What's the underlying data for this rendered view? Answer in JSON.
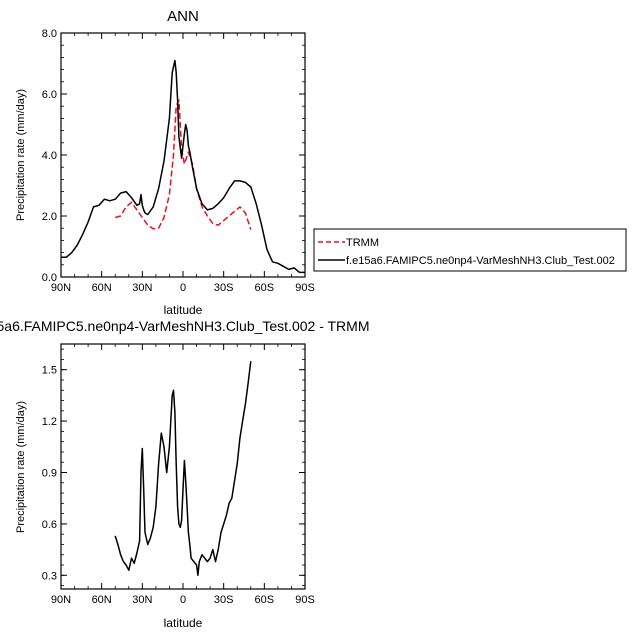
{
  "colors": {
    "trmm": "#e8101a",
    "model": "#000000",
    "axis": "#000000"
  },
  "chart_data": [
    {
      "type": "line",
      "title": "ANN",
      "xlabel": "latitude",
      "ylabel": "Precipitation rate (mm/day)",
      "xlim": [
        90,
        -90
      ],
      "ylim": [
        0,
        8
      ],
      "x_tick_values": [
        90,
        60,
        30,
        0,
        -30,
        -60,
        -90
      ],
      "x_tick_labels": [
        "90N",
        "60N",
        "30N",
        "0",
        "30S",
        "60S",
        "90S"
      ],
      "y_tick_values": [
        0,
        2,
        4,
        6,
        8
      ],
      "y_tick_labels": [
        "0.0",
        "2.0",
        "4.0",
        "6.0",
        "8.0"
      ],
      "grid": false,
      "legend_position": "right",
      "series": [
        {
          "name": "TRMM",
          "style": "dashed",
          "x": [
            50,
            46,
            42,
            38,
            34,
            30,
            26,
            22,
            18,
            14,
            10,
            7,
            5,
            3,
            1,
            -1,
            -4,
            -7,
            -10,
            -14,
            -18,
            -22,
            -26,
            -30,
            -34,
            -38,
            -42,
            -46,
            -50
          ],
          "y": [
            1.95,
            2.0,
            2.3,
            2.45,
            2.2,
            1.95,
            1.7,
            1.58,
            1.6,
            1.95,
            2.7,
            4.0,
            5.6,
            5.8,
            4.2,
            3.7,
            4.1,
            3.7,
            2.9,
            2.3,
            2.0,
            1.75,
            1.7,
            1.85,
            2.0,
            2.15,
            2.3,
            2.1,
            1.55
          ]
        },
        {
          "name": "f.e15a6.FAMIPC5.ne0np4-VarMeshNH3.Club_Test.002",
          "style": "solid",
          "x": [
            90,
            86,
            82,
            78,
            74,
            70,
            66,
            62,
            58,
            54,
            50,
            46,
            42,
            38,
            34,
            32,
            31,
            30,
            29,
            28,
            26,
            22,
            18,
            14,
            10,
            8,
            6,
            5,
            4,
            3,
            1,
            -1,
            -2,
            -3,
            -4,
            -5,
            -7,
            -10,
            -14,
            -18,
            -22,
            -26,
            -30,
            -34,
            -38,
            -42,
            -46,
            -50,
            -54,
            -58,
            -62,
            -66,
            -70,
            -74,
            -78,
            -82,
            -86,
            -90
          ],
          "y": [
            0.65,
            0.65,
            0.8,
            1.05,
            1.4,
            1.8,
            2.3,
            2.35,
            2.55,
            2.5,
            2.55,
            2.75,
            2.8,
            2.6,
            2.35,
            2.4,
            2.7,
            2.35,
            2.2,
            2.1,
            2.05,
            2.3,
            2.9,
            3.8,
            5.2,
            6.7,
            7.1,
            6.7,
            5.8,
            4.6,
            3.9,
            4.7,
            5.0,
            4.8,
            4.3,
            4.1,
            3.6,
            2.9,
            2.4,
            2.2,
            2.25,
            2.4,
            2.6,
            2.9,
            3.15,
            3.15,
            3.1,
            2.95,
            2.4,
            1.7,
            0.9,
            0.5,
            0.45,
            0.35,
            0.25,
            0.3,
            0.15,
            0.15
          ]
        }
      ]
    },
    {
      "type": "line",
      "title": "5a6.FAMIPC5.ne0np4-VarMeshNH3.Club_Test.002 - TRMM",
      "xlabel": "latitude",
      "ylabel": "Precipitation rate (mm/day)",
      "xlim": [
        90,
        -90
      ],
      "ylim": [
        0.22,
        1.65
      ],
      "x_tick_values": [
        90,
        60,
        30,
        0,
        -30,
        -60,
        -90
      ],
      "x_tick_labels": [
        "90N",
        "60N",
        "30N",
        "0",
        "30S",
        "60S",
        "90S"
      ],
      "y_tick_values": [
        0.3,
        0.6,
        0.9,
        1.2,
        1.5
      ],
      "y_tick_labels": [
        "0.3",
        "0.6",
        "0.9",
        "1.2",
        "1.5"
      ],
      "grid": false,
      "series": [
        {
          "style": "solid",
          "x": [
            50,
            48,
            46,
            44,
            42,
            40,
            38,
            36,
            34,
            32,
            31,
            30,
            29,
            28,
            26,
            24,
            22,
            20,
            18,
            16,
            14,
            12,
            10,
            8,
            7,
            6,
            5,
            4,
            3,
            2,
            1,
            0,
            -1,
            -2,
            -3,
            -4,
            -5,
            -6,
            -8,
            -10,
            -11,
            -12,
            -14,
            -16,
            -18,
            -20,
            -22,
            -24,
            -26,
            -28,
            -30,
            -32,
            -34,
            -36,
            -38,
            -40,
            -42,
            -44,
            -46,
            -48,
            -50
          ],
          "y": [
            0.53,
            0.48,
            0.42,
            0.38,
            0.36,
            0.33,
            0.4,
            0.37,
            0.43,
            0.5,
            0.9,
            1.04,
            0.8,
            0.55,
            0.48,
            0.52,
            0.58,
            0.7,
            0.95,
            1.13,
            1.05,
            0.9,
            1.05,
            1.35,
            1.38,
            1.25,
            0.95,
            0.7,
            0.6,
            0.58,
            0.62,
            0.8,
            0.97,
            0.85,
            0.7,
            0.55,
            0.48,
            0.4,
            0.38,
            0.36,
            0.3,
            0.38,
            0.42,
            0.4,
            0.38,
            0.4,
            0.45,
            0.38,
            0.45,
            0.55,
            0.6,
            0.65,
            0.72,
            0.75,
            0.85,
            0.95,
            1.1,
            1.2,
            1.3,
            1.42,
            1.55
          ]
        }
      ]
    }
  ]
}
